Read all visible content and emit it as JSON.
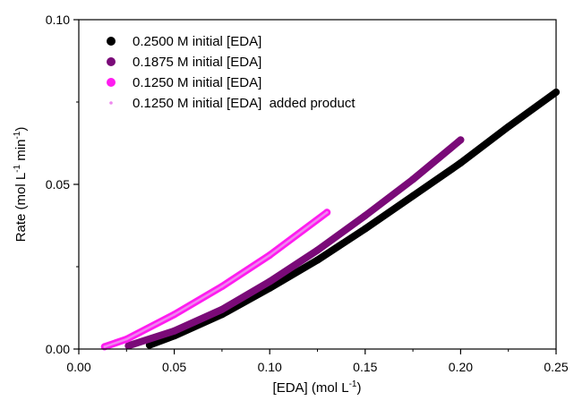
{
  "chart_data": {
    "type": "scatter",
    "xlabel": "[EDA] (mol L",
    "xlabel_sup": "-1",
    "xlabel_end": ")",
    "ylabel": "Rate (mol L",
    "ylabel_sup1": "-1",
    "ylabel_mid": " min",
    "ylabel_sup2": "-1",
    "ylabel_end": ")",
    "xlim": [
      0,
      0.25
    ],
    "ylim": [
      0,
      0.1
    ],
    "x_ticks": [
      "0.00",
      "0.05",
      "0.10",
      "0.15",
      "0.20",
      "0.25"
    ],
    "y_ticks": [
      "0.00",
      "0.05",
      "0.10"
    ],
    "legend_position": "top-left",
    "series": [
      {
        "name": "0.2500 M initial [EDA]",
        "color": "#000000",
        "marker": "dot-large",
        "x": [
          0.037,
          0.05,
          0.075,
          0.1,
          0.125,
          0.15,
          0.175,
          0.2,
          0.225,
          0.25
        ],
        "y": [
          0.0012,
          0.004,
          0.0105,
          0.0185,
          0.027,
          0.0365,
          0.0465,
          0.0565,
          0.0675,
          0.078
        ]
      },
      {
        "name": "0.1875 M initial [EDA]",
        "color": "#7a0a78",
        "marker": "dot-large",
        "x": [
          0.026,
          0.05,
          0.075,
          0.1,
          0.125,
          0.15,
          0.175,
          0.2
        ],
        "y": [
          0.001,
          0.0055,
          0.012,
          0.0205,
          0.03,
          0.0405,
          0.0515,
          0.0635
        ]
      },
      {
        "name": "0.1250 M initial [EDA]",
        "color": "#ff1cf0",
        "marker": "dot-large",
        "x": [
          0.0135,
          0.025,
          0.05,
          0.075,
          0.1,
          0.13
        ],
        "y": [
          0.0007,
          0.003,
          0.0105,
          0.019,
          0.0285,
          0.0415
        ]
      },
      {
        "name": "0.1250 M initial [EDA]  added product",
        "color": "#ee88ee",
        "marker": "dot-small",
        "x": [
          0.0135,
          0.025,
          0.05,
          0.075,
          0.1,
          0.13
        ],
        "y": [
          0.0007,
          0.003,
          0.0105,
          0.019,
          0.0285,
          0.0415
        ]
      }
    ]
  }
}
